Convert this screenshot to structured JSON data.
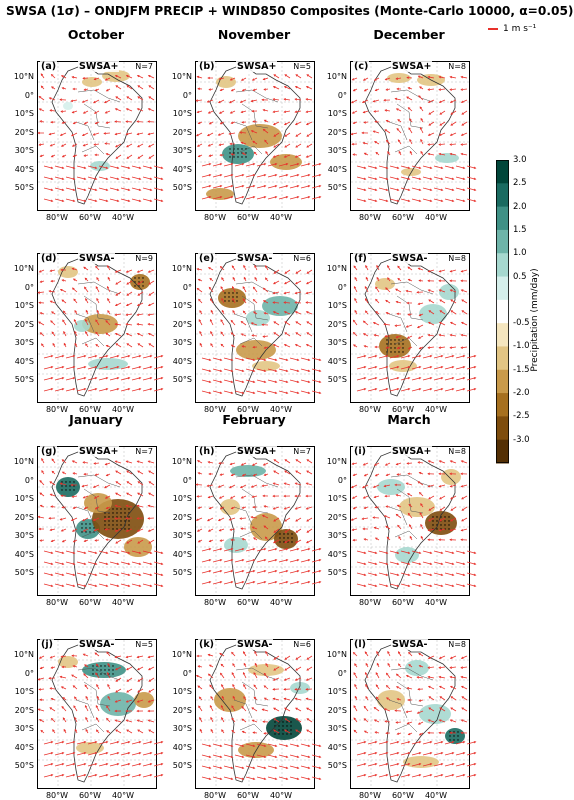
{
  "figure": {
    "title": "SWSA (1σ) – ONDJFM PRECIP + WIND850 Composites (Monte-Carlo 10000, α=0.05)",
    "reference_vector": "1 m s⁻¹"
  },
  "months": [
    "October",
    "November",
    "December",
    "January",
    "February",
    "March"
  ],
  "panels": [
    {
      "label": "(a)",
      "phase": "SWSA+",
      "n": "N=7"
    },
    {
      "label": "(b)",
      "phase": "SWSA+",
      "n": "N=5"
    },
    {
      "label": "(c)",
      "phase": "SWSA+",
      "n": "N=8"
    },
    {
      "label": "(d)",
      "phase": "SWSA-",
      "n": "N=9"
    },
    {
      "label": "(e)",
      "phase": "SWSA-",
      "n": "N=6"
    },
    {
      "label": "(f)",
      "phase": "SWSA-",
      "n": "N=8"
    },
    {
      "label": "(g)",
      "phase": "SWSA+",
      "n": "N=7"
    },
    {
      "label": "(h)",
      "phase": "SWSA+",
      "n": "N=7"
    },
    {
      "label": "(i)",
      "phase": "SWSA+",
      "n": "N=8"
    },
    {
      "label": "(j)",
      "phase": "SWSA-",
      "n": "N=5"
    },
    {
      "label": "(k)",
      "phase": "SWSA-",
      "n": "N=6"
    },
    {
      "label": "(l)",
      "phase": "SWSA-",
      "n": "N=8"
    }
  ],
  "map": {
    "lat_ticks": [
      "10°N",
      "0°",
      "10°S",
      "20°S",
      "30°S",
      "40°S",
      "50°S"
    ],
    "lon_ticks": [
      "80°W",
      "60°W",
      "40°W"
    ]
  },
  "colorbar": {
    "label": "Precipitation (mm/day)",
    "ticks": [
      "3.0",
      "2.5",
      "2.0",
      "1.5",
      "1.0",
      "0.5",
      "-0.5",
      "-1.0",
      "-1.5",
      "-2.0",
      "-2.5",
      "-3.0"
    ],
    "colors": [
      "#01463a",
      "#1a6b61",
      "#3f9186",
      "#6eb4a9",
      "#a6d8cf",
      "#d5efeb",
      "#ffffff",
      "#f5e6bf",
      "#e2c584",
      "#c99a4a",
      "#a6701f",
      "#7e4d0d",
      "#543005"
    ],
    "wind_color": "#e8312b"
  }
}
